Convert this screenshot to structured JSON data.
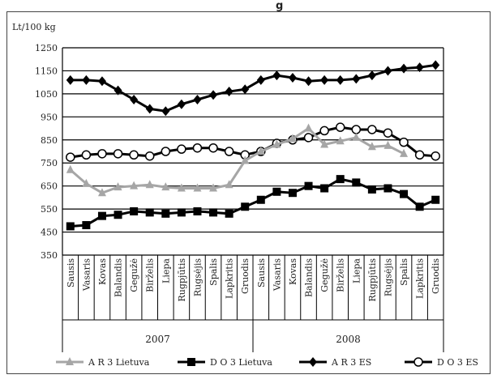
{
  "page": {
    "top_title_fragment": "g"
  },
  "chart_data": {
    "type": "line",
    "title": "",
    "ylabel": "Lt/100 kg",
    "xlabel": "",
    "ylim": [
      350,
      1250
    ],
    "yticks": [
      350,
      450,
      550,
      650,
      750,
      850,
      950,
      1050,
      1150,
      1250
    ],
    "grid": true,
    "legend_position": "bottom",
    "categories": [
      "Sausis",
      "Vasaris",
      "Kovas",
      "Balandis",
      "Gegužė",
      "Birželis",
      "Liepa",
      "Rugpjūtis",
      "Rugsėjis",
      "Spalis",
      "Lapkritis",
      "Gruodis",
      "Sausis",
      "Vasaris",
      "Kovas",
      "Balandis",
      "Gegužė",
      "Birželis",
      "Liepa",
      "Rugpjūtis",
      "Rugsėjis",
      "Spalis",
      "Lapkritis",
      "Gruodis"
    ],
    "groups": [
      {
        "label": "2007",
        "from": 0,
        "to": 11
      },
      {
        "label": "2008",
        "from": 12,
        "to": 23
      }
    ],
    "series": [
      {
        "name": "A R 3 Lietuva",
        "color": "#a6a6a6",
        "marker": "triangle",
        "values": [
          720,
          660,
          620,
          645,
          650,
          655,
          645,
          640,
          640,
          640,
          655,
          760,
          null,
          null,
          null,
          null,
          null,
          null,
          null,
          null,
          null,
          null,
          null,
          null
        ]
      },
      {
        "name": "D O 3 Lietuva",
        "color": "#000000",
        "marker": "square",
        "values": [
          475,
          480,
          520,
          525,
          540,
          535,
          530,
          535,
          540,
          535,
          530,
          560,
          590,
          625,
          620,
          650,
          640,
          680,
          665,
          635,
          640,
          615,
          560,
          590
        ]
      },
      {
        "name": "A R 3 ES",
        "color": "#000000",
        "marker": "diamond",
        "values": [
          1110,
          1110,
          1105,
          1065,
          1025,
          985,
          975,
          1005,
          1025,
          1045,
          1060,
          1070,
          1110,
          1130,
          1120,
          1105,
          1110,
          1110,
          1115,
          1130,
          1150,
          1160,
          1165,
          1175
        ]
      },
      {
        "name": "D O 3 ES",
        "color": "#000000",
        "marker": "circle",
        "values": [
          775,
          785,
          790,
          790,
          785,
          780,
          800,
          810,
          815,
          815,
          800,
          785,
          800,
          835,
          850,
          860,
          890,
          905,
          895,
          895,
          880,
          840,
          785,
          780
        ]
      },
      {
        "name": "A R 3 Lietuva",
        "color": "#a6a6a6",
        "marker": "triangle",
        "values": [
          null,
          null,
          null,
          null,
          null,
          null,
          null,
          null,
          null,
          null,
          null,
          760,
          800,
          830,
          855,
          900,
          830,
          845,
          860,
          820,
          825,
          790,
          null,
          null
        ]
      }
    ],
    "legend": [
      {
        "label": "A R 3 Lietuva",
        "marker": "triangle",
        "color": "#a6a6a6"
      },
      {
        "label": "D O 3 Lietuva",
        "marker": "square",
        "color": "#000000"
      },
      {
        "label": "A R 3 ES",
        "marker": "diamond",
        "color": "#000000"
      },
      {
        "label": "D O 3 ES",
        "marker": "circle",
        "color": "#000000"
      }
    ]
  }
}
